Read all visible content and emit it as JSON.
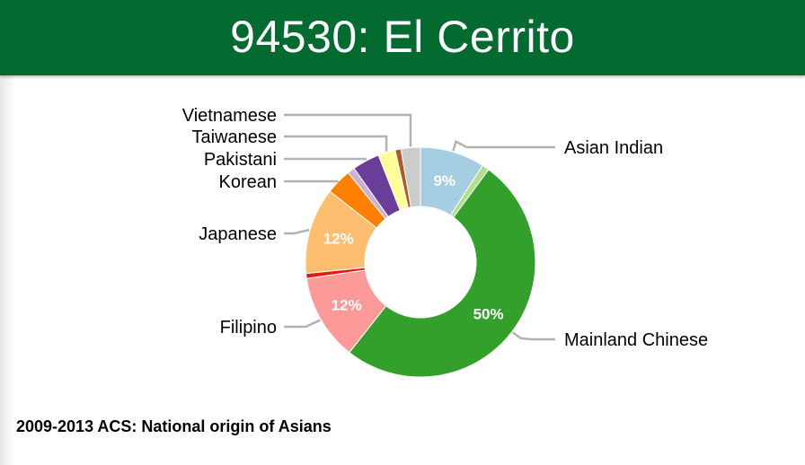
{
  "header": {
    "title": "94530: El Cerrito"
  },
  "caption": "2009-2013 ACS: National origin of Asians",
  "chart_data": {
    "type": "pie",
    "donut": true,
    "slices": [
      {
        "name": "Asian Indian",
        "value": 9,
        "label": "9%",
        "color": "#a6cee3",
        "legend": true
      },
      {
        "name": "",
        "value": 1,
        "label": "",
        "color": "#b2df8a",
        "legend": false
      },
      {
        "name": "Mainland Chinese",
        "value": 50,
        "label": "50%",
        "color": "#33a02c",
        "legend": true
      },
      {
        "name": "Filipino",
        "value": 12,
        "label": "12%",
        "color": "#fb9a99",
        "legend": true
      },
      {
        "name": "",
        "value": 0.7,
        "label": "",
        "color": "#e31a1c",
        "legend": false
      },
      {
        "name": "Japanese",
        "value": 12,
        "label": "12%",
        "color": "#fdbf6f",
        "legend": true
      },
      {
        "name": "Korean",
        "value": 3.6,
        "label": "",
        "color": "#ff7f00",
        "legend": true
      },
      {
        "name": "",
        "value": 1.0,
        "label": "",
        "color": "#cab2d6",
        "legend": false
      },
      {
        "name": "Pakistani",
        "value": 3.8,
        "label": "",
        "color": "#6a3d9a",
        "legend": true
      },
      {
        "name": "Taiwanese",
        "value": 2.4,
        "label": "",
        "color": "#ffff99",
        "legend": true
      },
      {
        "name": "",
        "value": 0.8,
        "label": "",
        "color": "#b15928",
        "legend": false
      },
      {
        "name": "Vietnamese",
        "value": 2.7,
        "label": "",
        "color": "#cccccc",
        "legend": true
      }
    ]
  }
}
